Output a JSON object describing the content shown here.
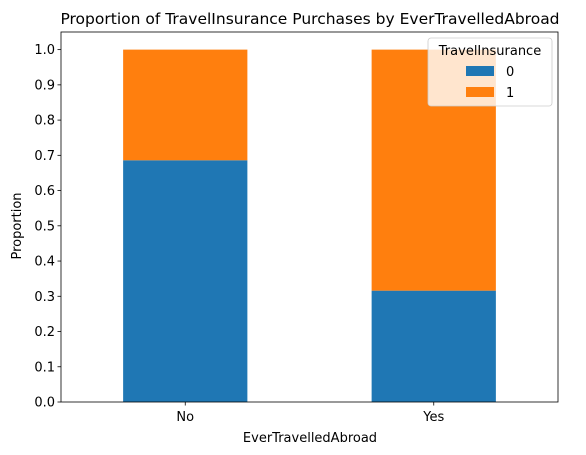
{
  "chart_data": {
    "type": "bar",
    "stacked": true,
    "title": "Proportion of TravelInsurance Purchases by EverTravelledAbroad",
    "xlabel": "EverTravelledAbroad",
    "ylabel": "Proportion",
    "categories": [
      "No",
      "Yes"
    ],
    "series": [
      {
        "name": "0",
        "values": [
          0.686,
          0.316
        ],
        "color": "#1f77b4"
      },
      {
        "name": "1",
        "values": [
          0.314,
          0.684
        ],
        "color": "#ff7f0e"
      }
    ],
    "ylim": [
      0.0,
      1.05
    ],
    "yticks": [
      0.0,
      0.1,
      0.2,
      0.3,
      0.4,
      0.5,
      0.6,
      0.7,
      0.8,
      0.9,
      1.0
    ],
    "grid": false,
    "legend": {
      "title": "TravelInsurance",
      "placement": "top-right"
    }
  }
}
